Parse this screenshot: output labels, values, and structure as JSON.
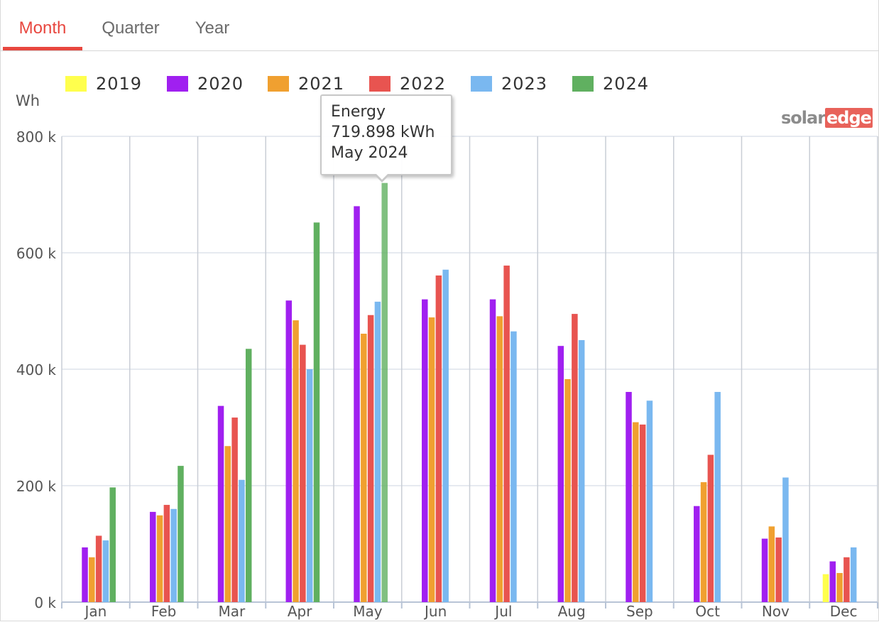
{
  "tabs": [
    {
      "label": "Month",
      "active": true
    },
    {
      "label": "Quarter",
      "active": false
    },
    {
      "label": "Year",
      "active": false
    }
  ],
  "unit_label": "Wh",
  "brand": {
    "part1": "solar",
    "part2": "edge"
  },
  "tooltip": {
    "title": "Energy",
    "value": "719.898 kWh",
    "period": "May 2024"
  },
  "colors": {
    "2019": "#ffff4d",
    "2020": "#a020f0",
    "2021": "#f0a030",
    "2022": "#e85450",
    "2023": "#7ab8f0",
    "2024": "#60b060",
    "accent": "#e8473f"
  },
  "chart_data": {
    "type": "bar",
    "categories": [
      "Jan",
      "Feb",
      "Mar",
      "Apr",
      "May",
      "Jun",
      "Jul",
      "Aug",
      "Sep",
      "Oct",
      "Nov",
      "Dec"
    ],
    "series": [
      {
        "name": "2019",
        "values": [
          null,
          null,
          null,
          null,
          null,
          null,
          null,
          null,
          null,
          null,
          null,
          48000
        ]
      },
      {
        "name": "2020",
        "values": [
          94000,
          155000,
          337000,
          518000,
          680000,
          520000,
          520000,
          440000,
          361000,
          165000,
          109000,
          70000
        ]
      },
      {
        "name": "2021",
        "values": [
          77000,
          149000,
          268000,
          484000,
          461000,
          489000,
          491000,
          383000,
          309000,
          206000,
          130000,
          50000
        ]
      },
      {
        "name": "2022",
        "values": [
          114000,
          167000,
          317000,
          442000,
          493000,
          561000,
          578000,
          495000,
          305000,
          253000,
          111000,
          77000
        ]
      },
      {
        "name": "2023",
        "values": [
          106000,
          160000,
          210000,
          400000,
          516000,
          571000,
          465000,
          450000,
          346000,
          361000,
          214000,
          94000
        ]
      },
      {
        "name": "2024",
        "values": [
          197000,
          234000,
          435000,
          652000,
          719898,
          null,
          null,
          null,
          null,
          null,
          null,
          null
        ]
      }
    ],
    "ylim": [
      0,
      800000
    ],
    "yticks": [
      {
        "value": 0,
        "label": "0 k"
      },
      {
        "value": 200000,
        "label": "200 k"
      },
      {
        "value": 400000,
        "label": "400 k"
      },
      {
        "value": 600000,
        "label": "600 k"
      },
      {
        "value": 800000,
        "label": "800 k"
      }
    ],
    "ylabel": "Wh",
    "grid": true,
    "legend": "top",
    "highlighted": {
      "series": "2024",
      "category": "May"
    }
  }
}
